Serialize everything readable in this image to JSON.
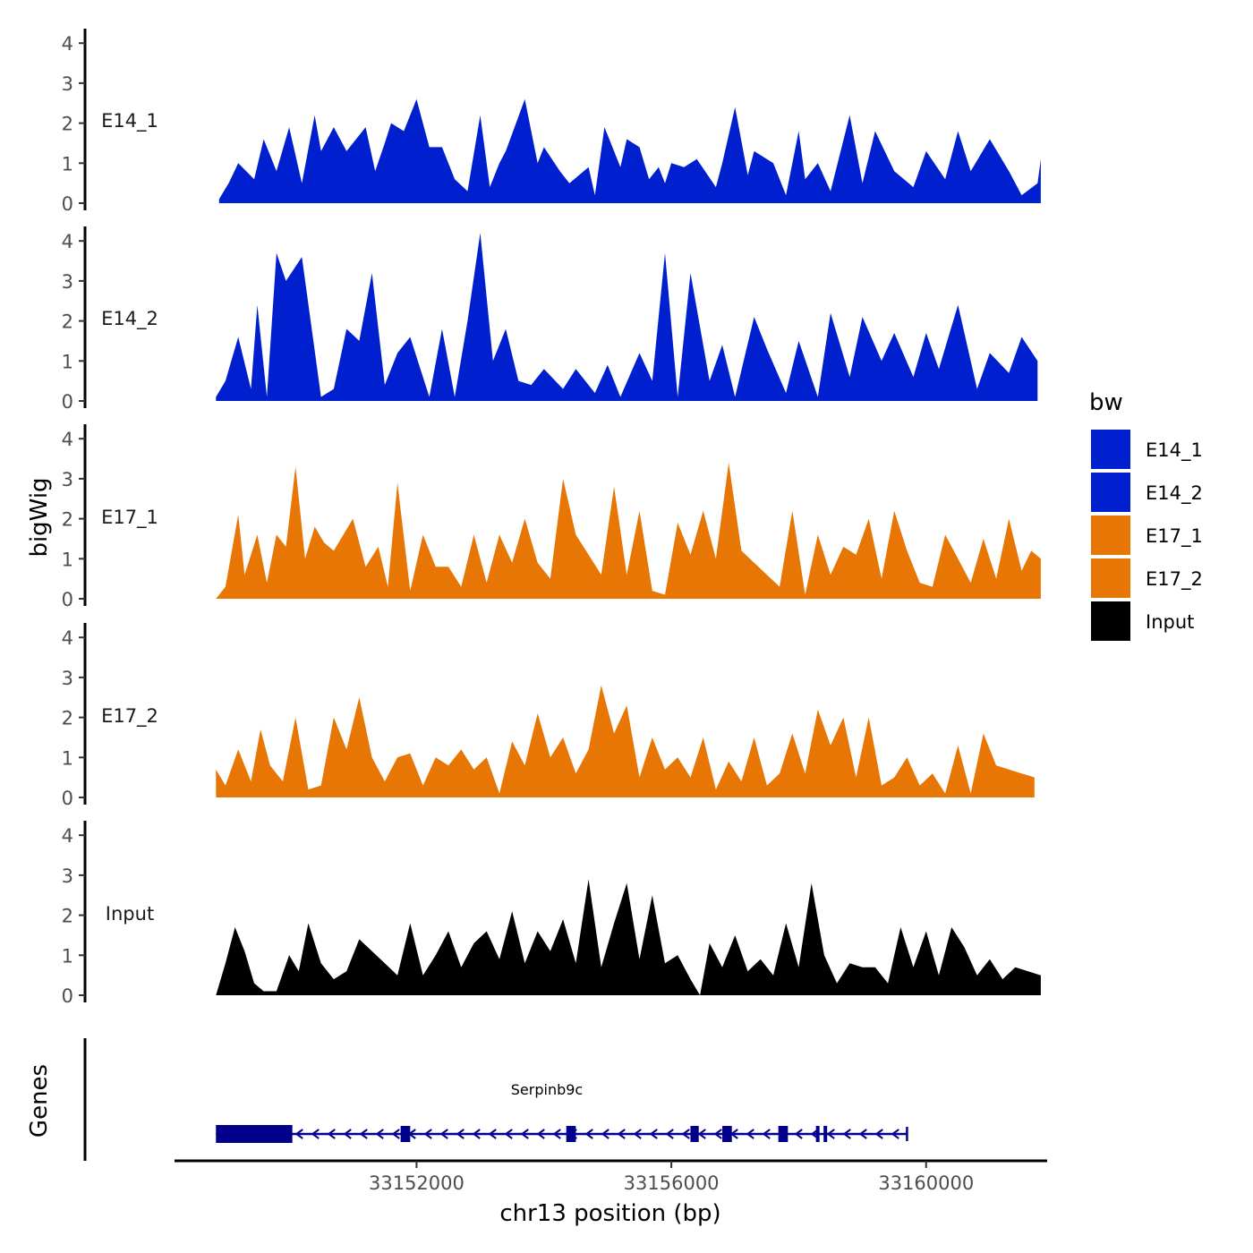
{
  "chart_data": {
    "type": "area",
    "title": "",
    "ylabel": "bigWig",
    "xlabel": "chr13 position (bp)",
    "ylim": [
      0,
      4.2
    ],
    "yticks": [
      0,
      1,
      2,
      3,
      4
    ],
    "xlim": [
      33148200,
      33161900
    ],
    "xticks": [
      33152000,
      33156000,
      33160000
    ],
    "xtick_labels": [
      "33152000",
      "33156000",
      "33160000"
    ],
    "tracks": [
      {
        "name": "E14_1",
        "color": "#0020CF",
        "x": [
          33148900,
          33149050,
          33149200,
          33149450,
          33149600,
          33149700,
          33149800,
          33150000,
          33150200,
          33150400,
          33150500,
          33150700,
          33150900,
          33151200,
          33151350,
          33151500,
          33151600,
          33151800,
          33152000,
          33152200,
          33152400,
          33152600,
          33152800,
          33153000,
          33153150,
          33153300,
          33153400,
          33153700,
          33153900,
          33154000,
          33154250,
          33154400,
          33154700,
          33154800,
          33154950,
          33155200,
          33155300,
          33155500,
          33155650,
          33155800,
          33155900,
          33156000,
          33156200,
          33156400,
          33156700,
          33156800,
          33157000,
          33157200,
          33157300,
          33157600,
          33157800,
          33158000,
          33158100,
          33158300,
          33158500,
          33158800,
          33159000,
          33159200,
          33159500,
          33159800,
          33160000,
          33160300,
          33160500,
          33160700,
          33161000,
          33161300,
          33161500,
          33161750,
          33161800
        ],
        "values": [
          0.1,
          0.5,
          1.0,
          0.6,
          1.6,
          1.2,
          0.8,
          1.9,
          0.5,
          2.2,
          1.3,
          1.9,
          1.3,
          1.9,
          0.8,
          1.5,
          2.0,
          1.8,
          2.6,
          1.4,
          1.4,
          0.6,
          0.3,
          2.2,
          0.4,
          1.0,
          1.3,
          2.6,
          1.0,
          1.4,
          0.8,
          0.5,
          0.9,
          0.2,
          1.9,
          0.9,
          1.6,
          1.4,
          0.6,
          0.9,
          0.5,
          1.0,
          0.9,
          1.1,
          0.4,
          1.0,
          2.4,
          0.7,
          1.3,
          1.0,
          0.2,
          1.8,
          0.6,
          1.0,
          0.3,
          2.2,
          0.5,
          1.8,
          0.8,
          0.4,
          1.3,
          0.6,
          1.8,
          0.8,
          1.6,
          0.8,
          0.2,
          0.5,
          1.1
        ]
      },
      {
        "name": "E14_2",
        "color": "#0020CF",
        "x": [
          33148850,
          33149000,
          33149200,
          33149400,
          33149500,
          33149650,
          33149800,
          33149950,
          33150200,
          33150500,
          33150700,
          33150900,
          33151100,
          33151300,
          33151500,
          33151700,
          33151900,
          33152000,
          33152200,
          33152400,
          33152600,
          33152800,
          33153000,
          33153200,
          33153400,
          33153600,
          33153800,
          33154000,
          33154300,
          33154500,
          33154800,
          33155000,
          33155200,
          33155500,
          33155700,
          33155900,
          33156100,
          33156300,
          33156600,
          33156800,
          33157000,
          33157300,
          33157500,
          33157800,
          33158000,
          33158300,
          33158500,
          33158800,
          33159000,
          33159300,
          33159500,
          33159800,
          33160000,
          33160200,
          33160500,
          33160800,
          33161000,
          33161300,
          33161500,
          33161750
        ],
        "values": [
          0.1,
          0.5,
          1.6,
          0.3,
          2.4,
          0.1,
          3.7,
          3.0,
          3.6,
          0.1,
          0.3,
          1.8,
          1.5,
          3.2,
          0.4,
          1.2,
          1.6,
          1.1,
          0.1,
          1.8,
          0.1,
          2.0,
          4.2,
          1.0,
          1.8,
          0.5,
          0.4,
          0.8,
          0.3,
          0.8,
          0.2,
          0.9,
          0.1,
          1.2,
          0.5,
          3.7,
          0.1,
          3.2,
          0.5,
          1.4,
          0.1,
          2.1,
          1.3,
          0.2,
          1.5,
          0.1,
          2.2,
          0.6,
          2.1,
          1.0,
          1.7,
          0.6,
          1.7,
          0.8,
          2.4,
          0.3,
          1.2,
          0.7,
          1.6,
          1.0
        ]
      },
      {
        "name": "E17_1",
        "color": "#E87605",
        "x": [
          33148850,
          33149000,
          33149200,
          33149300,
          33149500,
          33149650,
          33149800,
          33149950,
          33150100,
          33150250,
          33150400,
          33150550,
          33150700,
          33150850,
          33151000,
          33151200,
          33151400,
          33151550,
          33151700,
          33151900,
          33152100,
          33152300,
          33152500,
          33152700,
          33152900,
          33153100,
          33153300,
          33153500,
          33153700,
          33153900,
          33154100,
          33154300,
          33154500,
          33154700,
          33154900,
          33155100,
          33155300,
          33155500,
          33155700,
          33155900,
          33156100,
          33156300,
          33156500,
          33156700,
          33156900,
          33157100,
          33157300,
          33157500,
          33157700,
          33157900,
          33158100,
          33158300,
          33158500,
          33158700,
          33158900,
          33159100,
          33159300,
          33159500,
          33159700,
          33159900,
          33160100,
          33160300,
          33160500,
          33160700,
          33160900,
          33161100,
          33161300,
          33161500,
          33161650,
          33161800
        ],
        "values": [
          0.0,
          0.3,
          2.1,
          0.6,
          1.6,
          0.4,
          1.6,
          1.3,
          3.3,
          1.0,
          1.8,
          1.4,
          1.2,
          1.6,
          2.0,
          0.8,
          1.3,
          0.3,
          2.9,
          0.2,
          1.6,
          0.8,
          0.8,
          0.3,
          1.6,
          0.4,
          1.6,
          0.9,
          2.0,
          0.9,
          0.5,
          3.0,
          1.6,
          1.1,
          0.6,
          2.8,
          0.6,
          2.2,
          0.2,
          0.1,
          1.9,
          1.1,
          2.2,
          1.0,
          3.4,
          1.2,
          0.9,
          0.6,
          0.3,
          2.2,
          0.1,
          1.6,
          0.6,
          1.3,
          1.1,
          2.0,
          0.5,
          2.2,
          1.2,
          0.4,
          0.3,
          1.6,
          1.0,
          0.4,
          1.5,
          0.5,
          2.0,
          0.7,
          1.2,
          1.0
        ]
      },
      {
        "name": "E17_2",
        "color": "#E87605",
        "x": [
          33148850,
          33149000,
          33149200,
          33149400,
          33149550,
          33149700,
          33149900,
          33150100,
          33150300,
          33150500,
          33150700,
          33150900,
          33151100,
          33151300,
          33151500,
          33151700,
          33151900,
          33152100,
          33152300,
          33152500,
          33152700,
          33152900,
          33153100,
          33153300,
          33153500,
          33153700,
          33153900,
          33154100,
          33154300,
          33154500,
          33154700,
          33154900,
          33155100,
          33155300,
          33155500,
          33155700,
          33155900,
          33156100,
          33156300,
          33156500,
          33156700,
          33156900,
          33157100,
          33157300,
          33157500,
          33157700,
          33157900,
          33158100,
          33158300,
          33158500,
          33158700,
          33158900,
          33159100,
          33159300,
          33159500,
          33159700,
          33159900,
          33160100,
          33160300,
          33160500,
          33160700,
          33160900,
          33161100,
          33161300,
          33161500,
          33161700
        ],
        "values": [
          0.7,
          0.3,
          1.2,
          0.4,
          1.7,
          0.8,
          0.4,
          2.0,
          0.2,
          0.3,
          2.0,
          1.2,
          2.5,
          1.0,
          0.4,
          1.0,
          1.1,
          0.3,
          1.0,
          0.8,
          1.2,
          0.7,
          1.0,
          0.1,
          1.4,
          0.8,
          2.1,
          1.0,
          1.5,
          0.6,
          1.2,
          2.8,
          1.6,
          2.3,
          0.5,
          1.5,
          0.7,
          1.0,
          0.5,
          1.5,
          0.2,
          0.9,
          0.4,
          1.5,
          0.3,
          0.6,
          1.6,
          0.6,
          2.2,
          1.3,
          2.0,
          0.5,
          2.0,
          0.3,
          0.5,
          1.0,
          0.3,
          0.6,
          0.1,
          1.3,
          0.1,
          1.6,
          0.8,
          0.7,
          0.6,
          0.5
        ]
      },
      {
        "name": "Input",
        "color": "#000000",
        "x": [
          33148850,
          33149000,
          33149150,
          33149300,
          33149450,
          33149600,
          33149800,
          33150000,
          33150150,
          33150300,
          33150500,
          33150700,
          33150900,
          33151100,
          33151300,
          33151500,
          33151700,
          33151900,
          33152100,
          33152300,
          33152500,
          33152700,
          33152900,
          33153100,
          33153300,
          33153500,
          33153700,
          33153900,
          33154100,
          33154300,
          33154500,
          33154700,
          33154900,
          33155100,
          33155300,
          33155500,
          33155700,
          33155900,
          33156100,
          33156300,
          33156450,
          33156600,
          33156800,
          33157000,
          33157200,
          33157400,
          33157600,
          33157800,
          33158000,
          33158200,
          33158400,
          33158600,
          33158800,
          33159000,
          33159200,
          33159400,
          33159600,
          33159800,
          33160000,
          33160200,
          33160400,
          33160600,
          33160800,
          33161000,
          33161200,
          33161400,
          33161600,
          33161800
        ],
        "values": [
          0.0,
          0.8,
          1.7,
          1.1,
          0.3,
          0.1,
          0.1,
          1.0,
          0.6,
          1.8,
          0.8,
          0.4,
          0.6,
          1.4,
          1.1,
          0.8,
          0.5,
          1.8,
          0.5,
          1.0,
          1.6,
          0.7,
          1.3,
          1.6,
          0.9,
          2.1,
          0.8,
          1.6,
          1.1,
          1.9,
          0.8,
          2.9,
          0.7,
          1.8,
          2.8,
          0.9,
          2.5,
          0.8,
          1.0,
          0.4,
          0.0,
          1.3,
          0.7,
          1.5,
          0.6,
          0.9,
          0.5,
          1.8,
          0.7,
          2.8,
          1.0,
          0.3,
          0.8,
          0.7,
          0.7,
          0.3,
          1.7,
          0.7,
          1.6,
          0.5,
          1.7,
          1.2,
          0.5,
          0.9,
          0.4,
          0.7,
          0.6,
          0.5
        ]
      }
    ],
    "legend": {
      "title": "bw",
      "entries": [
        {
          "label": "E14_1",
          "color": "#0020CF"
        },
        {
          "label": "E14_2",
          "color": "#0020CF"
        },
        {
          "label": "E17_1",
          "color": "#E87605"
        },
        {
          "label": "E17_2",
          "color": "#E87605"
        },
        {
          "label": "Input",
          "color": "#000000"
        }
      ]
    },
    "genes_track": {
      "label": "Genes",
      "gene_name": "Serpinb9c",
      "strand": "-",
      "color": "#00008B",
      "start": 33148850,
      "end": 33159700,
      "exons": [
        {
          "start": 33148850,
          "end": 33150050
        },
        {
          "start": 33151750,
          "end": 33151900
        },
        {
          "start": 33154350,
          "end": 33154500
        },
        {
          "start": 33156300,
          "end": 33156430
        },
        {
          "start": 33156800,
          "end": 33156950
        },
        {
          "start": 33157680,
          "end": 33157830
        },
        {
          "start": 33158270,
          "end": 33158320
        },
        {
          "start": 33158390,
          "end": 33158440
        }
      ]
    }
  }
}
